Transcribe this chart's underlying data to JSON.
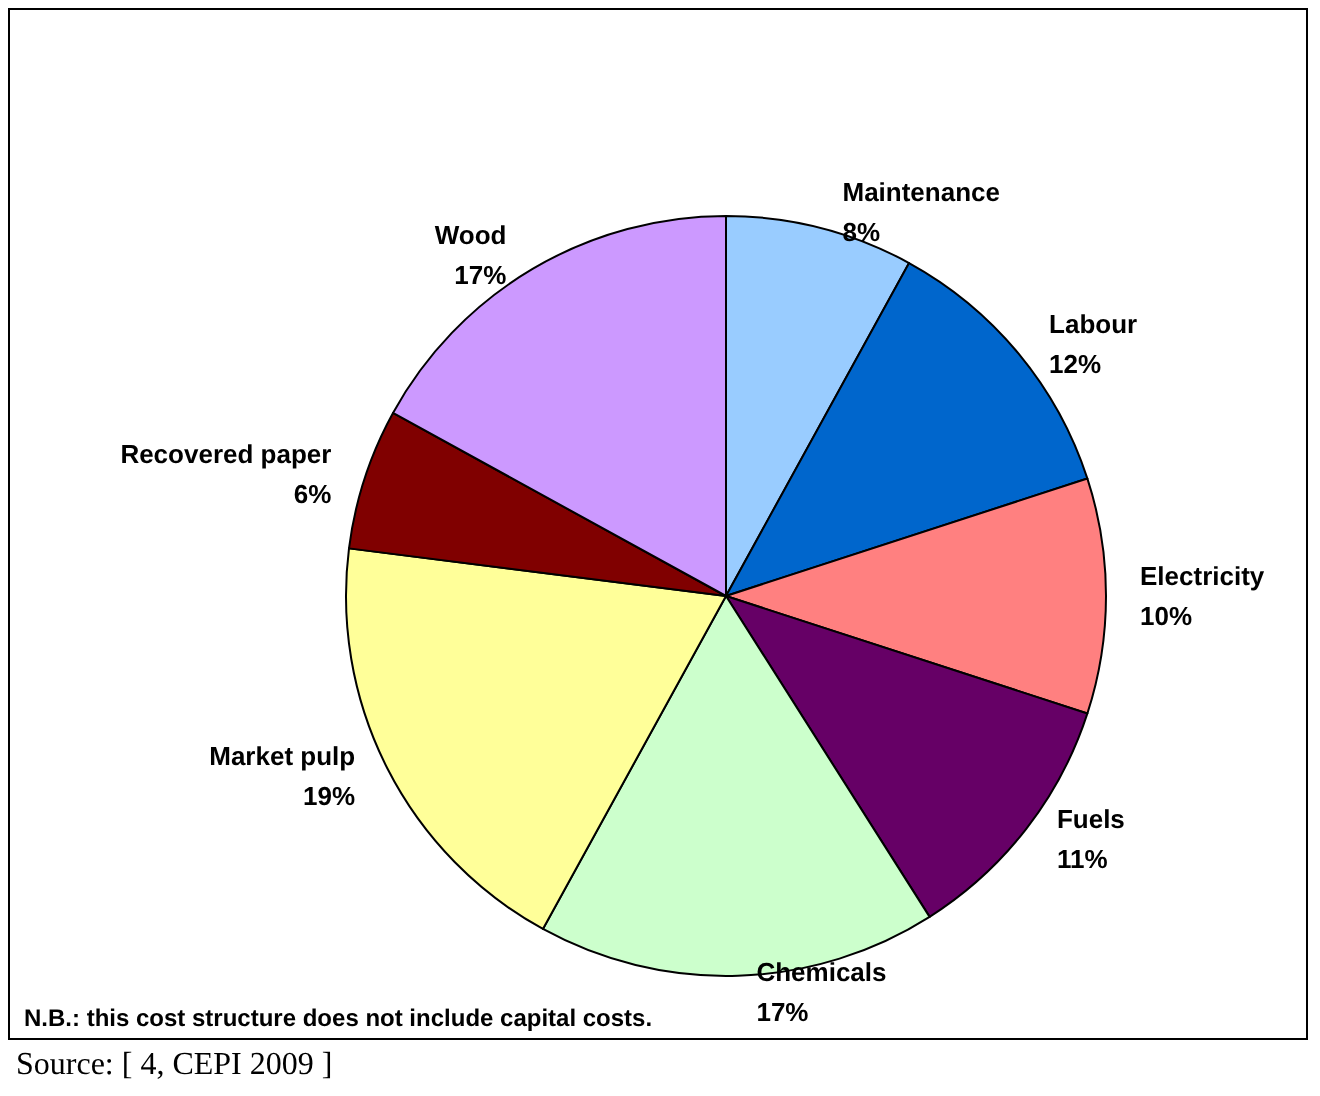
{
  "chart_data": {
    "type": "pie",
    "categories": [
      "Maintenance",
      "Labour",
      "Electricity",
      "Fuels",
      "Chemicals",
      "Market pulp",
      "Recovered paper",
      "Wood"
    ],
    "values": [
      8,
      12,
      10,
      11,
      17,
      19,
      6,
      17
    ],
    "value_labels": [
      "8%",
      "12%",
      "10%",
      "11%",
      "17%",
      "19%",
      "6%",
      "17%"
    ],
    "colors": [
      "#99ccff",
      "#0066cc",
      "#ff8080",
      "#660066",
      "#ccffcc",
      "#ffff99",
      "#800000",
      "#cc99ff"
    ],
    "legend": false,
    "annotations": [
      "N.B.: this cost structure does not include capital costs.",
      "Source: [ 4, CEPI 2009 ]"
    ]
  }
}
